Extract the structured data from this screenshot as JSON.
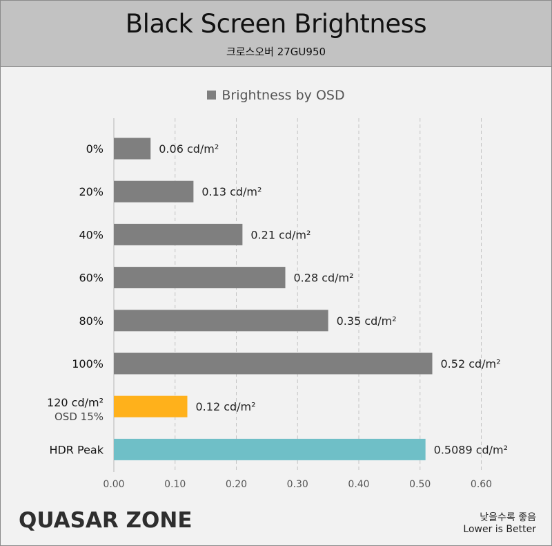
{
  "header": {
    "title": "Black Screen Brightness",
    "subtitle": "크로스오버 27GU950"
  },
  "legend": {
    "label": "Brightness by OSD"
  },
  "footer": {
    "brand": "QUASAR ZONE",
    "note_ko": "낮을수록 좋음",
    "note_en": "Lower is Better"
  },
  "chart_data": {
    "type": "bar",
    "orientation": "horizontal",
    "title": "Black Screen Brightness",
    "subtitle": "크로스오버 27GU950",
    "categories": [
      "0%",
      "20%",
      "40%",
      "60%",
      "80%",
      "100%",
      "120 cd/m²",
      "HDR Peak"
    ],
    "category_sublabels": [
      "",
      "",
      "",
      "",
      "",
      "",
      "OSD 15%",
      ""
    ],
    "values": [
      0.06,
      0.13,
      0.21,
      0.28,
      0.35,
      0.52,
      0.12,
      0.5089
    ],
    "data_labels": [
      "0.06 cd/m²",
      "0.13 cd/m²",
      "0.21 cd/m²",
      "0.28 cd/m²",
      "0.35 cd/m²",
      "0.52 cd/m²",
      "0.12 cd/m²",
      "0.5089 cd/m²"
    ],
    "bar_colors": [
      "#7f7f7f",
      "#7f7f7f",
      "#7f7f7f",
      "#7f7f7f",
      "#7f7f7f",
      "#7f7f7f",
      "#ffb11b",
      "#6fbfc7"
    ],
    "series": [
      {
        "name": "Brightness by OSD",
        "values": [
          0.06,
          0.13,
          0.21,
          0.28,
          0.35,
          0.52,
          0.12,
          0.5089
        ]
      }
    ],
    "xlim": [
      0,
      0.6
    ],
    "x_ticks": [
      0,
      0.1,
      0.2,
      0.3,
      0.4,
      0.5,
      0.6
    ],
    "x_tick_labels": [
      "0.00",
      "0.10",
      "0.20",
      "0.30",
      "0.40",
      "0.50",
      "0.60"
    ],
    "grid": "vertical dashed",
    "legend_position": "top-center"
  }
}
